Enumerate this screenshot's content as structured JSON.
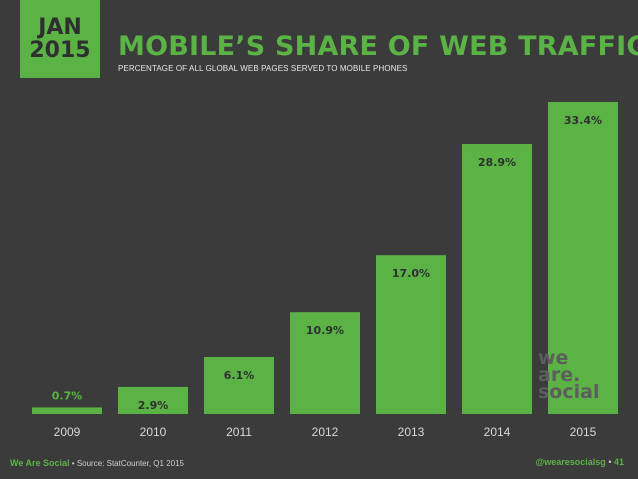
{
  "badge": {
    "month": "JAN",
    "year": "2015"
  },
  "header": {
    "title": "MOBILE’S SHARE OF WEB TRAFFIC",
    "subtitle": "PERCENTAGE OF ALL GLOBAL WEB PAGES SERVED TO MOBILE PHONES"
  },
  "watermark": {
    "line1": "we",
    "line2": "are.",
    "line3": "social"
  },
  "footer": {
    "brand": "We Are Social",
    "separator": "•",
    "source": "Source: StatCounter, Q1 2015",
    "handle": "@wearesocialsg",
    "page": "41"
  },
  "colors": {
    "background": "#3b3b3b",
    "accent": "#5bb346",
    "label": "#2f2f2f"
  },
  "chart_data": {
    "type": "bar",
    "categories": [
      "2009",
      "2010",
      "2011",
      "2012",
      "2013",
      "2014",
      "2015"
    ],
    "values": [
      0.7,
      2.9,
      6.1,
      10.9,
      17.0,
      28.9,
      33.4
    ],
    "value_labels": [
      "0.7%",
      "2.9%",
      "6.1%",
      "10.9%",
      "17.0%",
      "28.9%",
      "33.4%"
    ],
    "ylim": [
      0,
      33.4
    ],
    "grid": false
  }
}
